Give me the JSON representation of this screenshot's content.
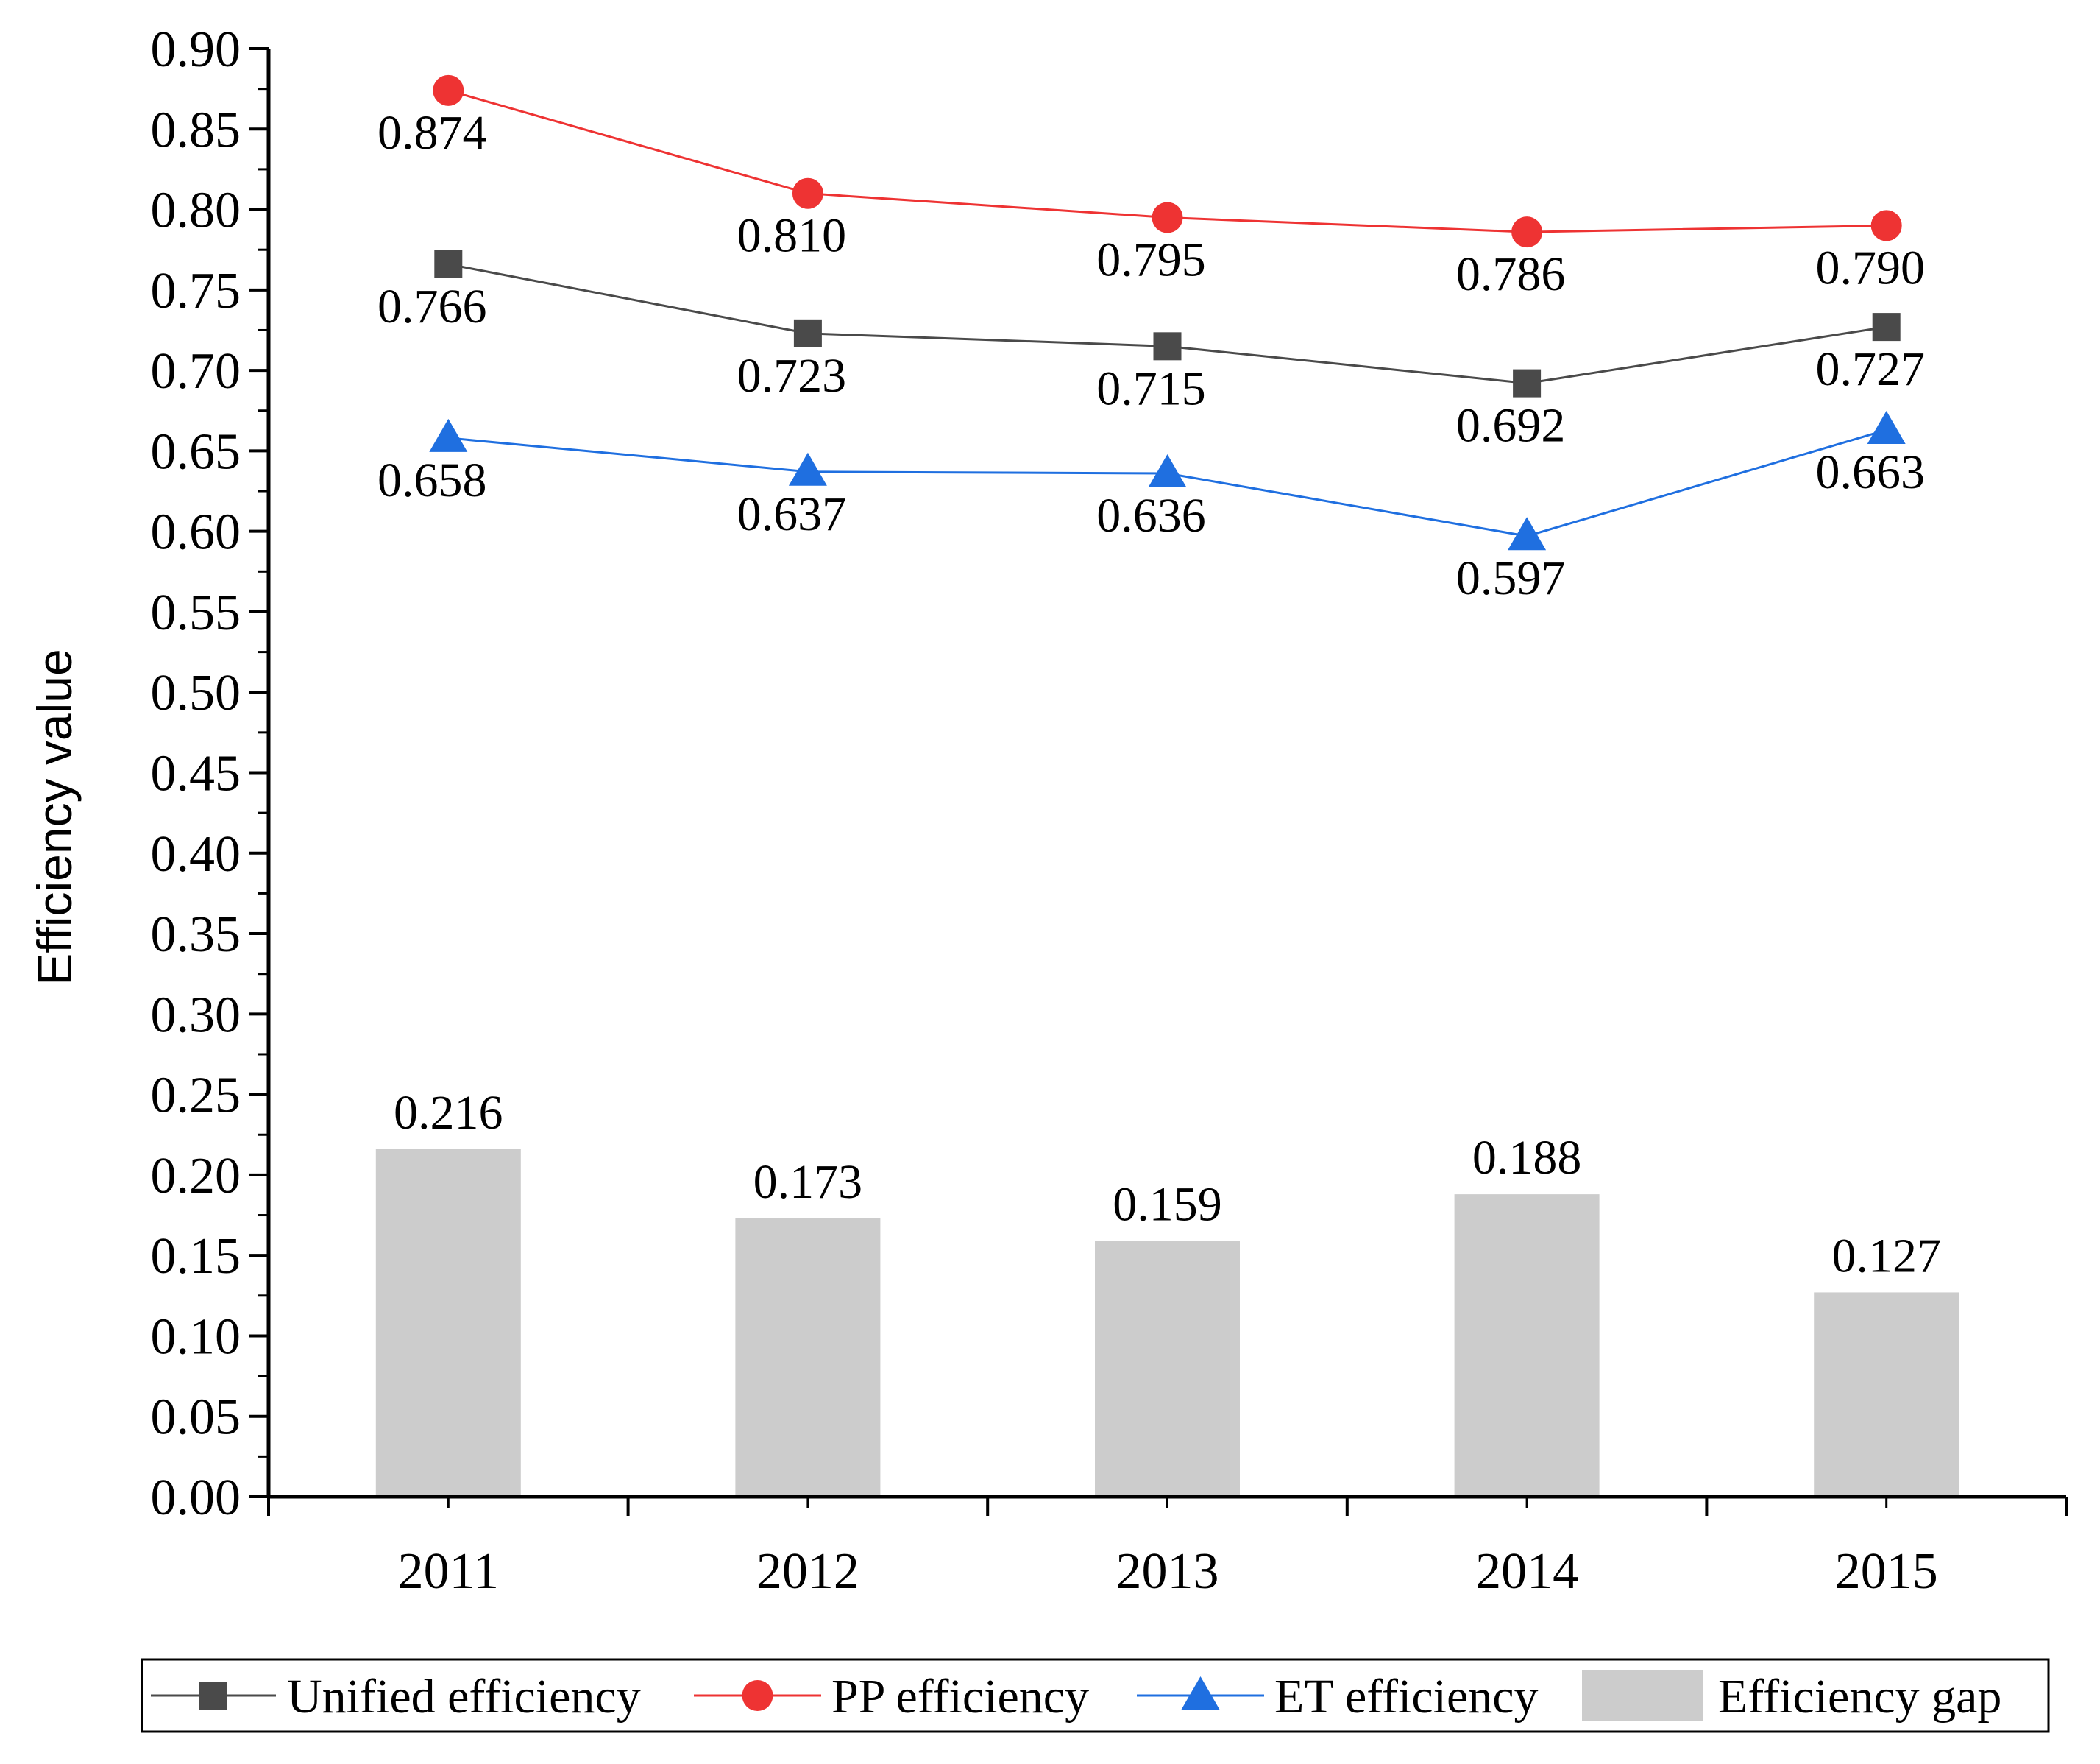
{
  "chart_data": {
    "type": "bar+line",
    "title": "",
    "xlabel": "",
    "ylabel": "Efficiency value",
    "categories": [
      "2011",
      "2012",
      "2013",
      "2014",
      "2015"
    ],
    "ylim": [
      0,
      0.9
    ],
    "yticks": [
      "0.00",
      "0.05",
      "0.10",
      "0.15",
      "0.20",
      "0.25",
      "0.30",
      "0.35",
      "0.40",
      "0.45",
      "0.50",
      "0.55",
      "0.60",
      "0.65",
      "0.70",
      "0.75",
      "0.80",
      "0.85",
      "0.90"
    ],
    "series": [
      {
        "name": "Unified efficiency",
        "kind": "line",
        "marker": "square",
        "color": "#4a4a4a",
        "values": [
          0.766,
          0.723,
          0.715,
          0.692,
          0.727
        ],
        "labels": [
          "0.766",
          "0.723",
          "0.715",
          "0.692",
          "0.727"
        ]
      },
      {
        "name": "PP efficiency",
        "kind": "line",
        "marker": "circle",
        "color": "#ee3333",
        "values": [
          0.874,
          0.81,
          0.795,
          0.786,
          0.79
        ],
        "labels": [
          "0.874",
          "0.810",
          "0.795",
          "0.786",
          "0.790"
        ]
      },
      {
        "name": "ET efficiency",
        "kind": "line",
        "marker": "triangle",
        "color": "#1f6fe0",
        "values": [
          0.658,
          0.637,
          0.636,
          0.597,
          0.663
        ],
        "labels": [
          "0.658",
          "0.637",
          "0.636",
          "0.597",
          "0.663"
        ]
      },
      {
        "name": "Efficiency gap",
        "kind": "bar",
        "color": "#cccccc",
        "values": [
          0.216,
          0.173,
          0.159,
          0.188,
          0.127
        ],
        "labels": [
          "0.216",
          "0.173",
          "0.159",
          "0.188",
          "0.127"
        ]
      }
    ],
    "legend_position": "bottom"
  }
}
